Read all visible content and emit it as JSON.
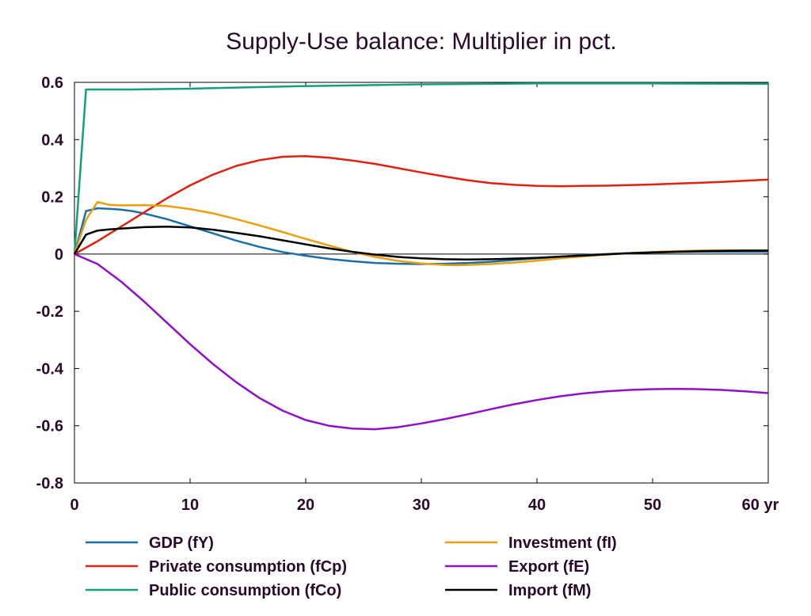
{
  "chart_data": {
    "type": "line",
    "title": "Supply-Use balance: Multiplier in pct.",
    "x_unit_label": "yr",
    "xlim": [
      0,
      60
    ],
    "ylim": [
      -0.8,
      0.6
    ],
    "x_ticks": [
      0,
      10,
      20,
      30,
      40,
      50,
      60
    ],
    "x_tick_labels": [
      "0",
      "10",
      "20",
      "30",
      "40",
      "50",
      "60 yr"
    ],
    "y_ticks": [
      0.6,
      0.4,
      0.2,
      0,
      -0.2,
      -0.4,
      -0.6,
      -0.8
    ],
    "y_tick_labels": [
      "0.6",
      "0.4",
      "0.2",
      "0",
      "-0.2",
      "-0.4",
      "-0.6",
      "-0.8"
    ],
    "grid": false,
    "zero_line": true,
    "legend_position": "bottom",
    "series": [
      {
        "name": "GDP (fY)",
        "color": "#1a6fa8",
        "x": [
          0,
          1,
          2,
          3,
          4,
          5,
          6,
          8,
          10,
          12,
          14,
          16,
          18,
          20,
          22,
          24,
          26,
          28,
          30,
          32,
          34,
          36,
          38,
          40,
          42,
          44,
          46,
          48,
          50,
          52,
          54,
          56,
          58,
          60
        ],
        "y": [
          0,
          0.15,
          0.16,
          0.158,
          0.155,
          0.15,
          0.142,
          0.122,
          0.097,
          0.072,
          0.047,
          0.025,
          0.007,
          -0.006,
          -0.017,
          -0.025,
          -0.031,
          -0.034,
          -0.035,
          -0.034,
          -0.031,
          -0.027,
          -0.021,
          -0.015,
          -0.009,
          -0.004,
          0.0,
          0.003,
          0.005,
          0.007,
          0.008,
          0.008,
          0.008,
          0.008
        ]
      },
      {
        "name": "Private consumption (fCp)",
        "color": "#e02010",
        "x": [
          0,
          2,
          4,
          6,
          8,
          10,
          12,
          14,
          16,
          18,
          20,
          22,
          24,
          26,
          28,
          30,
          32,
          34,
          36,
          38,
          40,
          42,
          44,
          46,
          48,
          50,
          52,
          54,
          56,
          58,
          60
        ],
        "y": [
          0,
          0.045,
          0.095,
          0.145,
          0.195,
          0.24,
          0.278,
          0.308,
          0.328,
          0.34,
          0.342,
          0.337,
          0.327,
          0.315,
          0.3,
          0.285,
          0.271,
          0.258,
          0.248,
          0.242,
          0.238,
          0.237,
          0.238,
          0.239,
          0.241,
          0.243,
          0.246,
          0.249,
          0.252,
          0.256,
          0.26
        ]
      },
      {
        "name": "Public consumption (fCo)",
        "color": "#12a07a",
        "x": [
          0,
          1,
          5,
          10,
          20,
          30,
          40,
          50,
          60
        ],
        "y": [
          0,
          0.575,
          0.575,
          0.578,
          0.587,
          0.593,
          0.596,
          0.596,
          0.595
        ]
      },
      {
        "name": "Investment (fI)",
        "color": "#e6a010",
        "x": [
          0,
          1,
          2,
          3,
          4,
          6,
          8,
          10,
          12,
          14,
          16,
          18,
          20,
          22,
          24,
          26,
          28,
          30,
          32,
          33,
          34,
          36,
          38,
          40,
          42,
          44,
          46,
          48,
          50,
          52,
          54,
          56,
          58,
          60
        ],
        "y": [
          0,
          0.12,
          0.182,
          0.172,
          0.17,
          0.171,
          0.168,
          0.157,
          0.142,
          0.122,
          0.1,
          0.077,
          0.053,
          0.03,
          0.008,
          -0.01,
          -0.024,
          -0.033,
          -0.038,
          -0.039,
          -0.038,
          -0.035,
          -0.03,
          -0.023,
          -0.015,
          -0.008,
          -0.002,
          0.003,
          0.007,
          0.01,
          0.012,
          0.013,
          0.013,
          0.013
        ]
      },
      {
        "name": "Export (fE)",
        "color": "#9010c8",
        "x": [
          0,
          2,
          4,
          6,
          8,
          10,
          12,
          14,
          16,
          18,
          20,
          22,
          24,
          26,
          28,
          30,
          32,
          34,
          36,
          38,
          40,
          42,
          44,
          46,
          48,
          50,
          52,
          54,
          56,
          58,
          60
        ],
        "y": [
          0,
          -0.035,
          -0.095,
          -0.165,
          -0.24,
          -0.315,
          -0.385,
          -0.448,
          -0.503,
          -0.547,
          -0.58,
          -0.6,
          -0.61,
          -0.612,
          -0.605,
          -0.592,
          -0.577,
          -0.56,
          -0.542,
          -0.525,
          -0.51,
          -0.497,
          -0.487,
          -0.48,
          -0.475,
          -0.472,
          -0.471,
          -0.472,
          -0.475,
          -0.48,
          -0.486
        ]
      },
      {
        "name": "Import (fM)",
        "color": "#000000",
        "x": [
          0,
          1,
          2,
          3,
          4,
          6,
          8,
          10,
          12,
          14,
          16,
          18,
          20,
          22,
          24,
          26,
          28,
          30,
          32,
          34,
          36,
          38,
          40,
          42,
          44,
          46,
          48,
          50,
          52,
          54,
          56,
          58,
          60
        ],
        "y": [
          0,
          0.068,
          0.082,
          0.086,
          0.089,
          0.094,
          0.096,
          0.093,
          0.085,
          0.074,
          0.062,
          0.048,
          0.034,
          0.02,
          0.008,
          -0.002,
          -0.01,
          -0.015,
          -0.018,
          -0.019,
          -0.018,
          -0.016,
          -0.013,
          -0.009,
          -0.005,
          -0.001,
          0.003,
          0.006,
          0.008,
          0.01,
          0.011,
          0.012,
          0.012
        ]
      }
    ]
  }
}
